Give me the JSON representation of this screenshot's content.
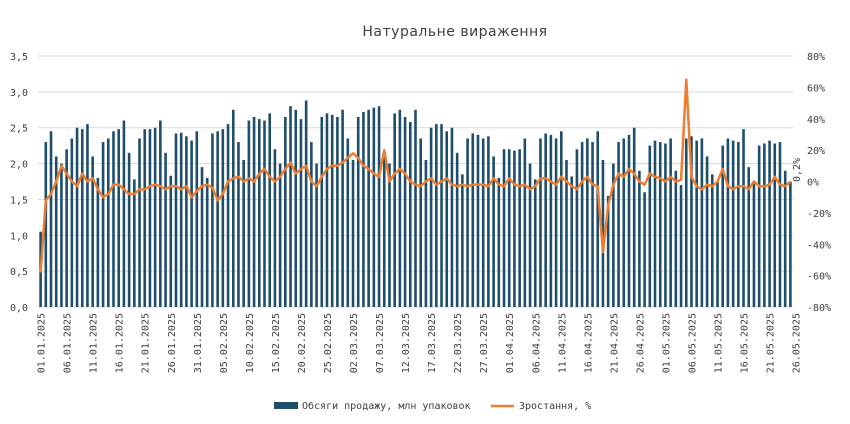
{
  "chart_data": {
    "type": "bar",
    "title": "Натуральне вираження",
    "left_axis": {
      "ticks": [
        "0,0",
        "0,5",
        "1,0",
        "1,5",
        "2,0",
        "2,5",
        "3,0",
        "3,5"
      ],
      "ylim": [
        0,
        3.5
      ]
    },
    "right_axis": {
      "ticks": [
        "-80%",
        "-60%",
        "-40%",
        "-20%",
        "0%",
        "20%",
        "40%",
        "60%",
        "80%"
      ],
      "ylim": [
        -80,
        80
      ]
    },
    "x_tick_labels": [
      "01.01.2025",
      "06.01.2025",
      "11.01.2025",
      "16.01.2025",
      "21.01.2025",
      "26.01.2025",
      "31.01.2025",
      "05.02.2025",
      "10.02.2025",
      "15.02.2025",
      "20.02.2025",
      "25.02.2025",
      "02.03.2025",
      "07.03.2025",
      "12.03.2025",
      "17.03.2025",
      "22.03.2025",
      "27.03.2025",
      "01.04.2025",
      "06.04.2025",
      "11.04.2025",
      "16.04.2025",
      "21.04.2025",
      "26.04.2025",
      "01.05.2025",
      "06.05.2025",
      "11.05.2025",
      "16.05.2025",
      "21.05.2025",
      "26.05.2025"
    ],
    "annotation": "0,2%",
    "colors": {
      "bar": "#1f4e6b",
      "line": "#ed7d31",
      "grid": "#d9d9d9"
    },
    "grid": true,
    "legend_position": "bottom",
    "series": [
      {
        "name": "Обсяги продажу, млн упаковок",
        "kind": "bar",
        "axis": "left",
        "values": [
          1.05,
          2.3,
          2.45,
          2.1,
          2.0,
          2.2,
          2.35,
          2.5,
          2.48,
          2.55,
          2.1,
          1.8,
          2.3,
          2.35,
          2.45,
          2.48,
          2.6,
          2.15,
          1.78,
          2.35,
          2.48,
          2.48,
          2.5,
          2.6,
          2.15,
          1.83,
          2.42,
          2.43,
          2.38,
          2.32,
          2.45,
          1.95,
          1.8,
          2.42,
          2.45,
          2.48,
          2.55,
          2.75,
          2.3,
          2.05,
          2.6,
          2.65,
          2.62,
          2.6,
          2.7,
          2.2,
          2.0,
          2.65,
          2.8,
          2.75,
          2.62,
          2.88,
          2.3,
          2.0,
          2.65,
          2.7,
          2.68,
          2.65,
          2.75,
          2.35,
          2.05,
          2.65,
          2.72,
          2.75,
          2.78,
          2.8,
          2.1,
          2.0,
          2.7,
          2.75,
          2.65,
          2.58,
          2.75,
          2.35,
          2.05,
          2.5,
          2.55,
          2.55,
          2.45,
          2.5,
          2.15,
          1.85,
          2.35,
          2.42,
          2.4,
          2.35,
          2.38,
          2.1,
          1.8,
          2.2,
          2.2,
          2.18,
          2.2,
          2.35,
          2.0,
          1.78,
          2.35,
          2.42,
          2.4,
          2.35,
          2.45,
          2.05,
          1.82,
          2.2,
          2.3,
          2.35,
          2.3,
          2.45,
          2.05,
          1.55,
          2.0,
          2.3,
          2.35,
          2.4,
          2.5,
          1.9,
          1.6,
          2.25,
          2.32,
          2.3,
          2.28,
          2.35,
          1.9,
          1.7,
          2.35,
          2.38,
          2.32,
          2.35,
          2.1,
          1.85,
          1.75,
          2.25,
          2.35,
          2.32,
          2.3,
          2.48,
          1.95,
          1.75,
          2.25,
          2.28,
          2.32,
          2.28,
          2.3,
          1.9,
          1.75
        ]
      },
      {
        "name": "Зростання, %",
        "kind": "line",
        "axis": "right",
        "values": [
          -58,
          -12,
          -8,
          0,
          10,
          5,
          0,
          -3,
          5,
          0,
          2,
          -5,
          -10,
          -8,
          -2,
          -2,
          -5,
          -8,
          -8,
          -5,
          -5,
          -3,
          -2,
          -3,
          -5,
          -3,
          -3,
          -5,
          -3,
          -10,
          -6,
          -3,
          -2,
          -4,
          -12,
          -8,
          0,
          2,
          3,
          0,
          2,
          0,
          5,
          8,
          3,
          0,
          3,
          8,
          12,
          5,
          8,
          10,
          0,
          -3,
          3,
          8,
          10,
          10,
          12,
          15,
          18,
          15,
          10,
          8,
          5,
          3,
          20,
          0,
          5,
          8,
          5,
          0,
          -2,
          -3,
          0,
          2,
          -2,
          0,
          2,
          -2,
          -3,
          -2,
          -3,
          -2,
          -2,
          -2,
          -3,
          2,
          -2,
          -3,
          2,
          -2,
          -3,
          -2,
          -5,
          -3,
          2,
          2,
          0,
          -2,
          3,
          0,
          -3,
          -5,
          0,
          3,
          -2,
          -3,
          -45,
          -15,
          -2,
          5,
          3,
          8,
          5,
          0,
          -2,
          5,
          3,
          2,
          0,
          3,
          0,
          1,
          65,
          3,
          -3,
          -5,
          -2,
          -3,
          0,
          8,
          -3,
          -5,
          -3,
          -3,
          -5,
          0,
          -3,
          -3,
          -2,
          3,
          -2,
          -3,
          0
        ]
      }
    ]
  }
}
